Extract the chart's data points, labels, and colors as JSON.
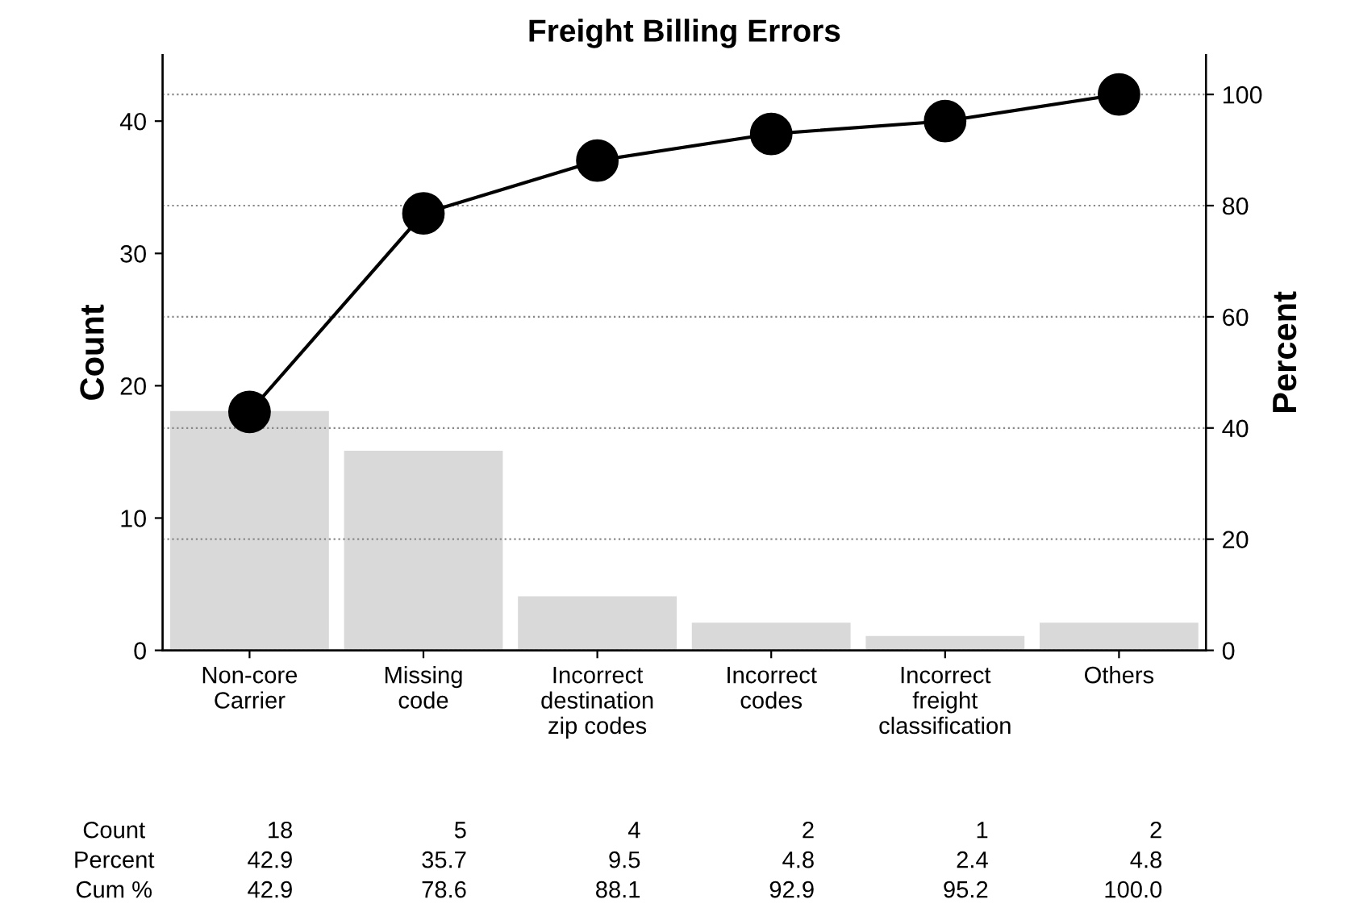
{
  "chart_data": {
    "type": "bar",
    "title": "Freight Billing Errors",
    "ylabel": "Count",
    "y2label": "Percent",
    "categories": [
      "Non-core\nCarrier",
      "Missing\ncode",
      "Incorrect\ndestination\nzip codes",
      "Incorrect\ncodes",
      "Incorrect\nfreight\nclassification",
      "Others"
    ],
    "series": [
      {
        "color": "#d9d9d9",
        "values": [
          18,
          15,
          4,
          2,
          1,
          2
        ]
      },
      {
        "type": "line",
        "axis": "y2",
        "color": "#000000",
        "marker": "circle",
        "values": [
          42.9,
          78.6,
          88.1,
          92.9,
          95.2,
          100.0
        ]
      }
    ],
    "annotations": [
      "Count",
      "18",
      "5",
      "4",
      "2",
      "1",
      "2",
      "Percent",
      "42.9",
      "35.7",
      "9.5",
      "4.8",
      "2.4",
      "4.8",
      "Cum %",
      "42.9",
      "78.6",
      "88.1",
      "92.9",
      "95.2",
      "100.0"
    ],
    "ylim": [
      0,
      45
    ],
    "yticks": [
      0,
      10,
      20,
      30,
      40
    ],
    "y2lim": [
      0,
      107.1
    ],
    "y2ticks": [
      0,
      20,
      40,
      60,
      80,
      100
    ],
    "grid": "y"
  }
}
